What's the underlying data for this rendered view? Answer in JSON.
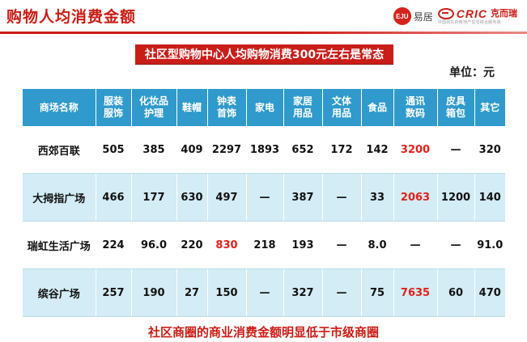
{
  "header": {
    "title": "购物人均消费金额",
    "logo_eju_badge": "EJU",
    "logo_eju_text": "易居",
    "logo_cric_word": "CRIC",
    "logo_cric_cn": "克而瑞",
    "logo_cric_sub": "中国领先的房地产信息综合服务商",
    "colors": {
      "accent": "#cc1b14",
      "table_header": "#2f9acb",
      "row_alt": "#d3ecf5",
      "highlight": "#e0201a"
    }
  },
  "banner": "社区型购物中心人均购物消费300元左右是常态",
  "unit": "单位：元",
  "table": {
    "headers": [
      [
        "商场名称"
      ],
      [
        "服装",
        "服饰"
      ],
      [
        "化妆品",
        "护理"
      ],
      [
        "鞋帽"
      ],
      [
        "钟表",
        "首饰"
      ],
      [
        "家电"
      ],
      [
        "家居",
        "用品"
      ],
      [
        "文体",
        "用品"
      ],
      [
        "食品"
      ],
      [
        "通讯",
        "数码"
      ],
      [
        "皮具",
        "箱包"
      ],
      [
        "其它"
      ]
    ],
    "rows": [
      {
        "cells": [
          "西郊百联",
          "505",
          "385",
          "409",
          "2297",
          "1893",
          "652",
          "172",
          "142",
          "3200",
          "—",
          "320"
        ],
        "highlight": [
          9
        ]
      },
      {
        "cells": [
          "大拇指广场",
          "466",
          "177",
          "630",
          "497",
          "—",
          "387",
          "—",
          "33",
          "2063",
          "1200",
          "140"
        ],
        "highlight": [
          9
        ]
      },
      {
        "cells": [
          "瑞虹生活广场",
          "224",
          "96.0",
          "220",
          "830",
          "218",
          "193",
          "—",
          "8.0",
          "—",
          "—",
          "91.0"
        ],
        "highlight": [
          4
        ]
      },
      {
        "cells": [
          "缤谷广场",
          "257",
          "190",
          "27",
          "150",
          "—",
          "327",
          "—",
          "75",
          "7635",
          "60",
          "470"
        ],
        "highlight": [
          9
        ]
      }
    ]
  },
  "footer_note": "社区商圈的商业消费金额明显低于市级商圈"
}
